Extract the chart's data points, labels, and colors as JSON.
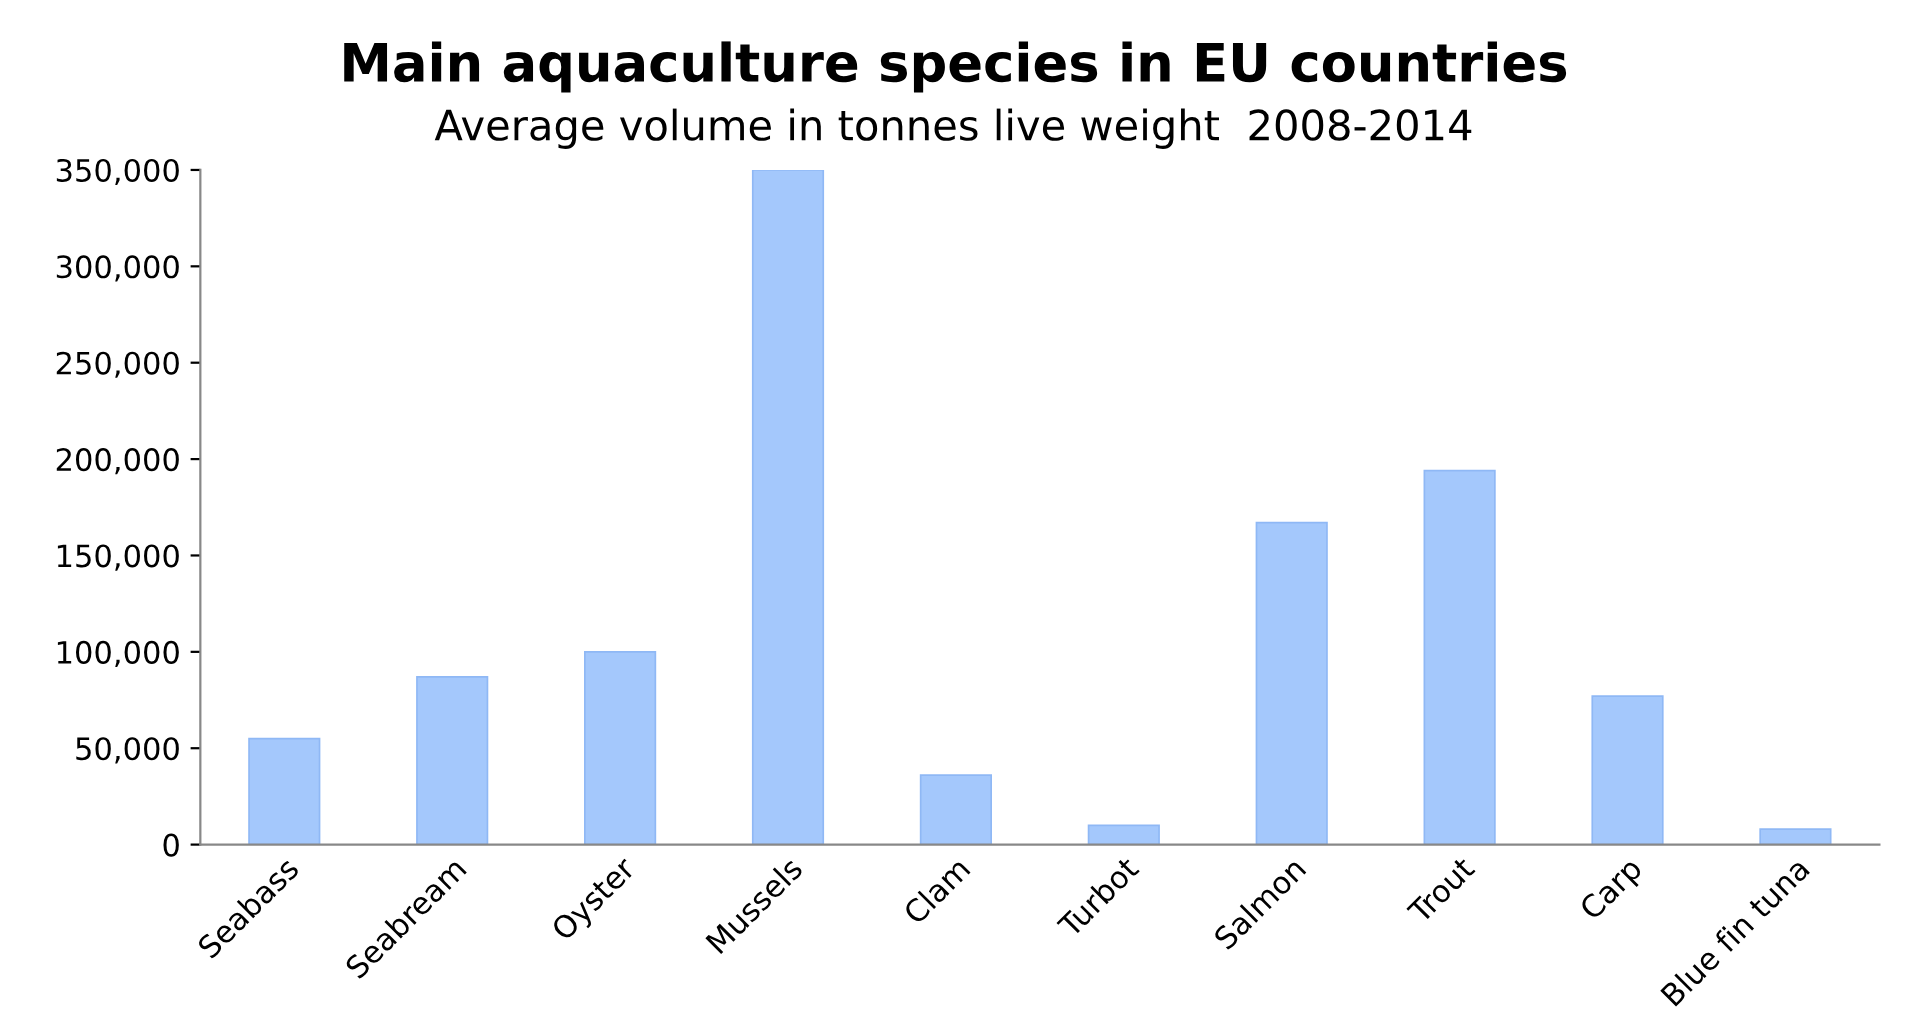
{
  "chart_data": {
    "type": "bar",
    "title": "Main aquaculture species in EU countries",
    "subtitle": "Average volume in tonnes live weight  2008-2014",
    "categories": [
      "Seabass",
      "Seabream",
      "Oyster",
      "Mussels",
      "Clam",
      "Turbot",
      "Salmon",
      "Trout",
      "Carp",
      "Blue fin tuna"
    ],
    "values": [
      55000,
      87000,
      100000,
      350000,
      36000,
      10000,
      167000,
      194000,
      77000,
      8000
    ],
    "color": "#a4c8fc",
    "ylim": [
      0,
      350000
    ],
    "yticks": [
      {
        "value": 0,
        "label": "0"
      },
      {
        "value": 50000,
        "label": "50,000"
      },
      {
        "value": 100000,
        "label": "100,000"
      },
      {
        "value": 150000,
        "label": "150,000"
      },
      {
        "value": 200000,
        "label": "200,000"
      },
      {
        "value": 250000,
        "label": "250,000"
      },
      {
        "value": 300000,
        "label": "300,000"
      },
      {
        "value": 350000,
        "label": "350,000"
      }
    ],
    "grid": false
  }
}
